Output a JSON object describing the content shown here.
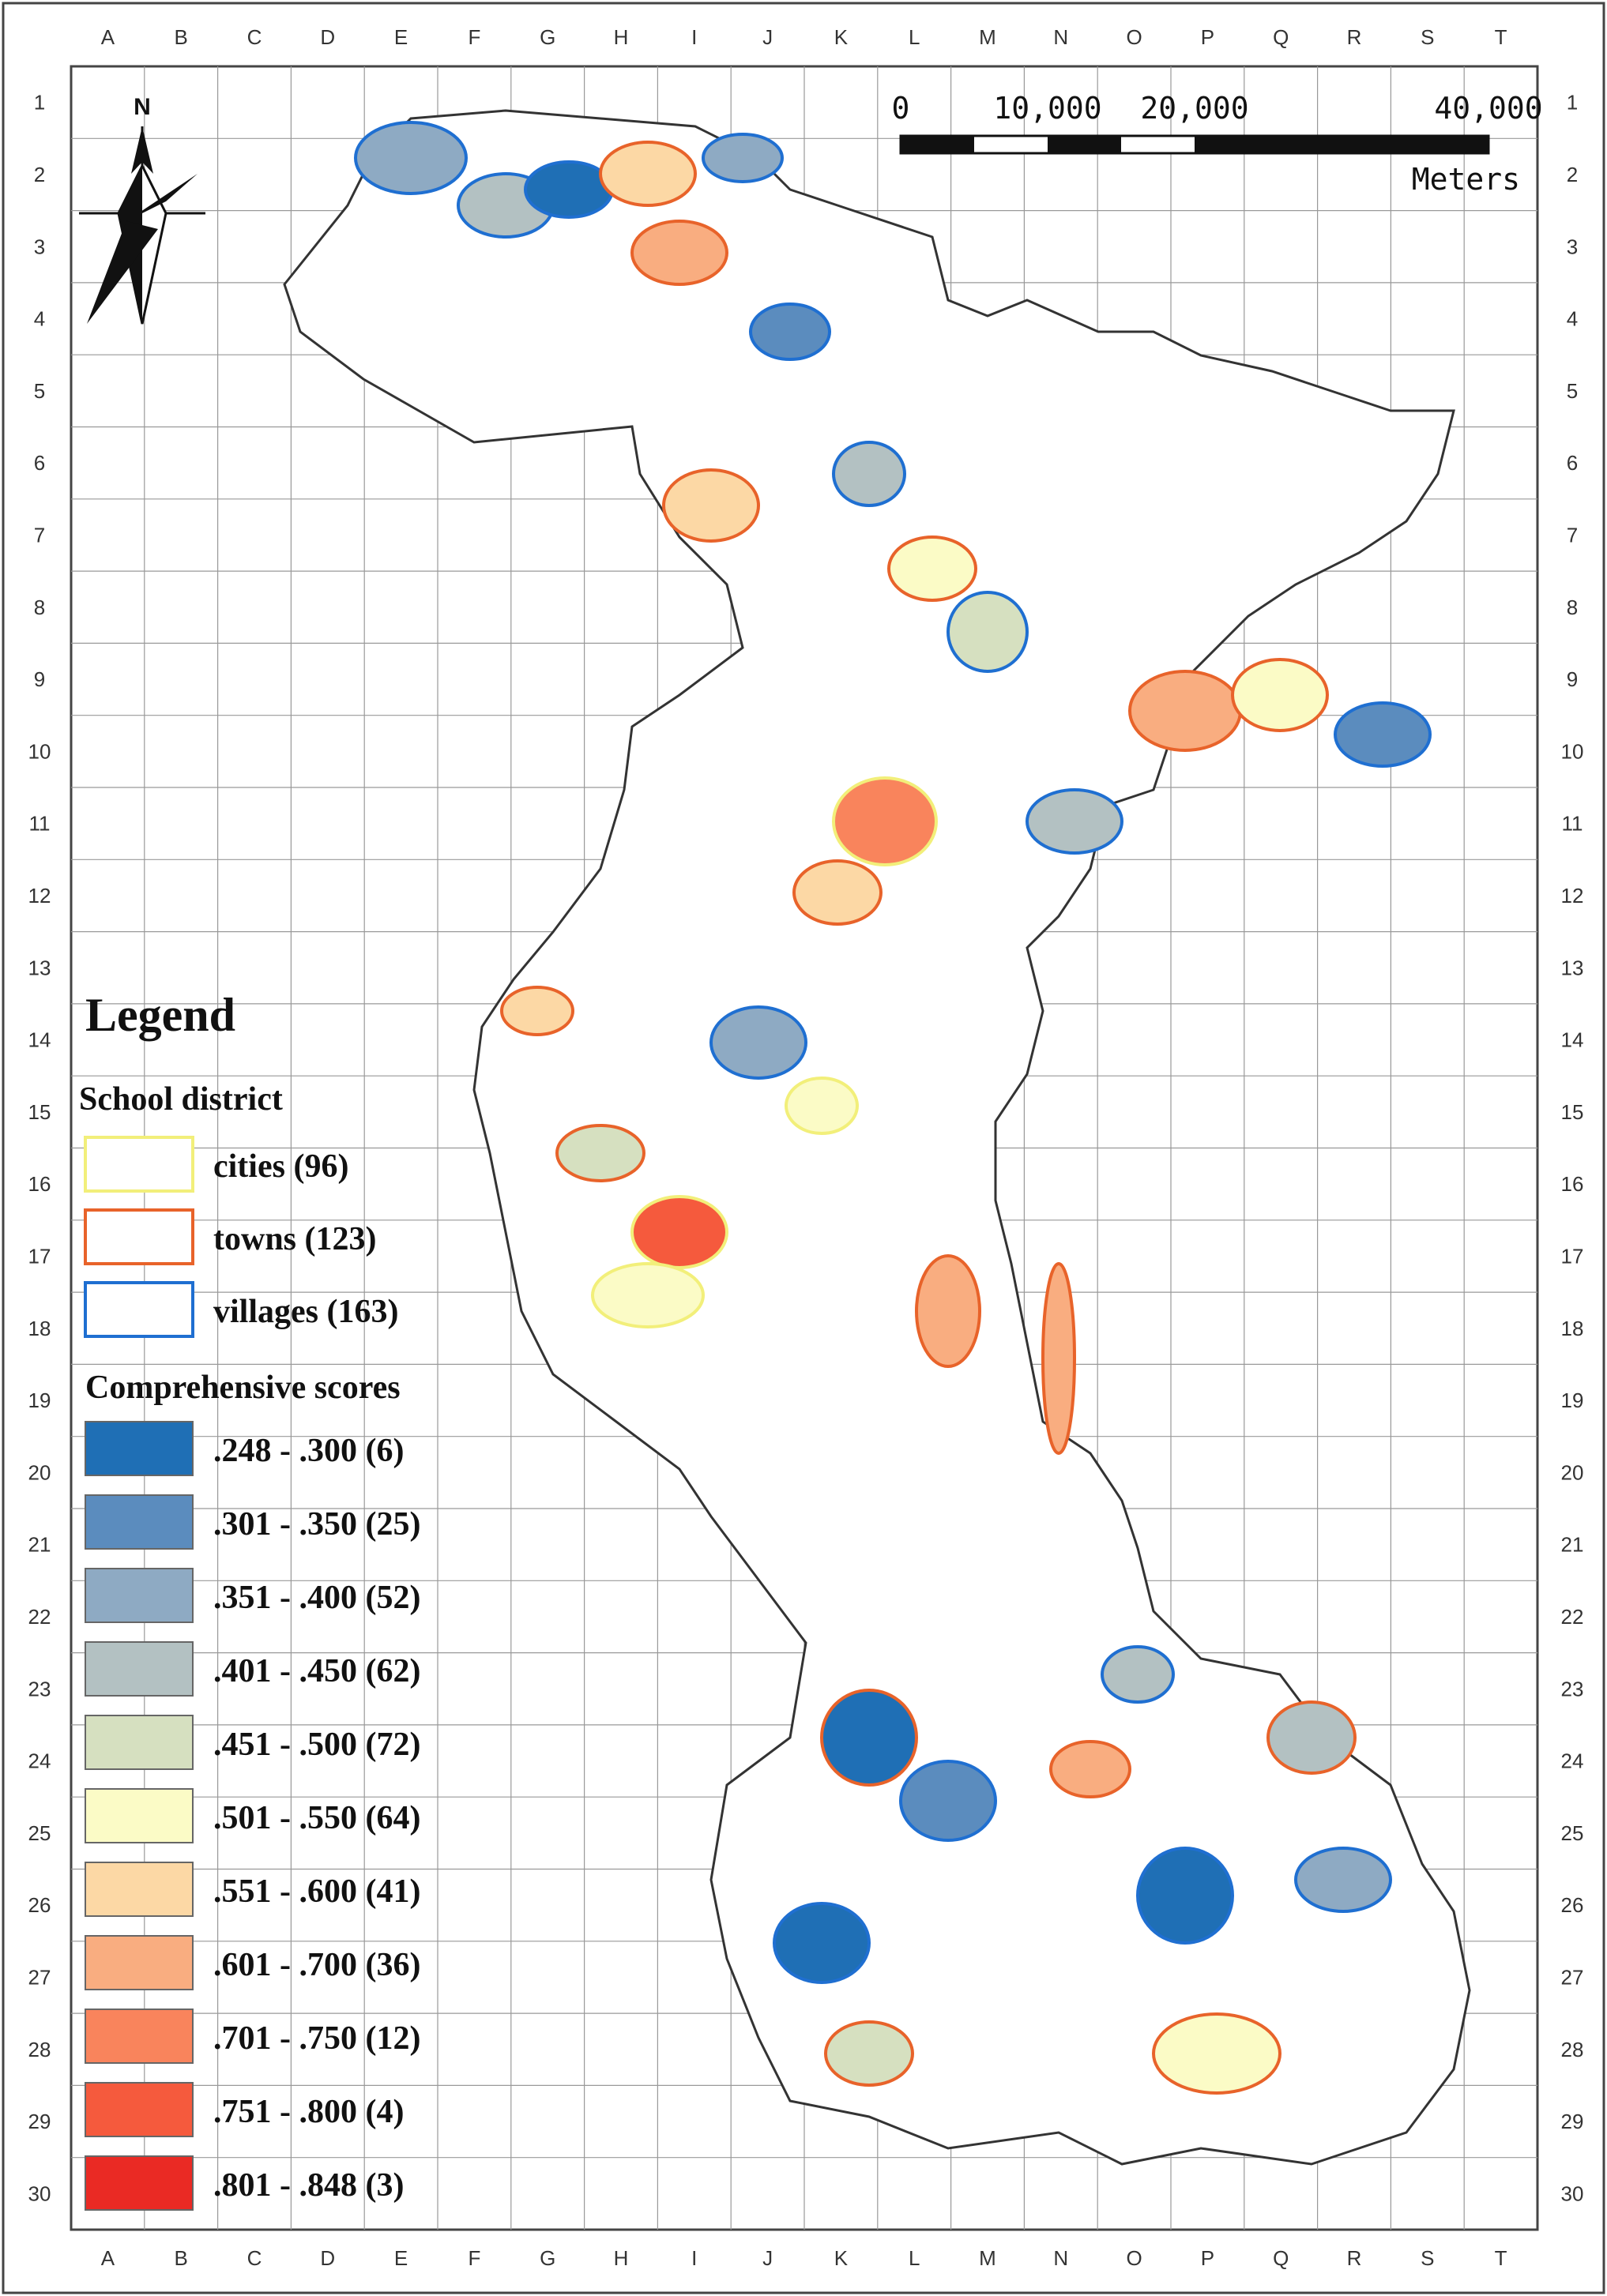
{
  "grid": {
    "columns": [
      "A",
      "B",
      "C",
      "D",
      "E",
      "F",
      "G",
      "H",
      "I",
      "J",
      "K",
      "L",
      "M",
      "N",
      "O",
      "P",
      "Q",
      "R",
      "S",
      "T"
    ],
    "rows": [
      "1",
      "2",
      "3",
      "4",
      "5",
      "6",
      "7",
      "8",
      "9",
      "10",
      "11",
      "12",
      "13",
      "14",
      "15",
      "16",
      "17",
      "18",
      "19",
      "20",
      "21",
      "22",
      "23",
      "24",
      "25",
      "26",
      "27",
      "28",
      "29",
      "30"
    ]
  },
  "north_arrow": {
    "label": "N"
  },
  "scale_bar": {
    "ticks": [
      "0",
      "10,000",
      "20,000",
      "40,000"
    ],
    "unit": "Meters"
  },
  "legend": {
    "title": "Legend",
    "school_district": {
      "heading": "School district",
      "items": [
        {
          "label": "cities (96)",
          "outline_color": "#f2ef7a"
        },
        {
          "label": "towns (123)",
          "outline_color": "#e8632a"
        },
        {
          "label": "villages (163)",
          "outline_color": "#1f6fd1"
        }
      ]
    },
    "scores": {
      "heading": "Comprehensive scores",
      "items": [
        {
          "label": ".248 - .300 (6)",
          "color": "#1f6fb5"
        },
        {
          "label": ".301 - .350 (25)",
          "color": "#5b8cbe"
        },
        {
          "label": ".351 - .400 (52)",
          "color": "#8eaac3"
        },
        {
          "label": ".401 - .450 (62)",
          "color": "#b3c1c2"
        },
        {
          "label": ".451 - .500 (72)",
          "color": "#d6e0c0"
        },
        {
          "label": ".501 - .550 (64)",
          "color": "#fbfbc6"
        },
        {
          "label": ".551 - .600 (41)",
          "color": "#fcd8a5"
        },
        {
          "label": ".601 - .700 (36)",
          "color": "#f9ad80"
        },
        {
          "label": ".701 - .750 (12)",
          "color": "#f9845c"
        },
        {
          "label": ".751 - .800 (4)",
          "color": "#f55a3d"
        },
        {
          "label": ".801 - .848 (3)",
          "color": "#ea2a24"
        }
      ]
    }
  }
}
